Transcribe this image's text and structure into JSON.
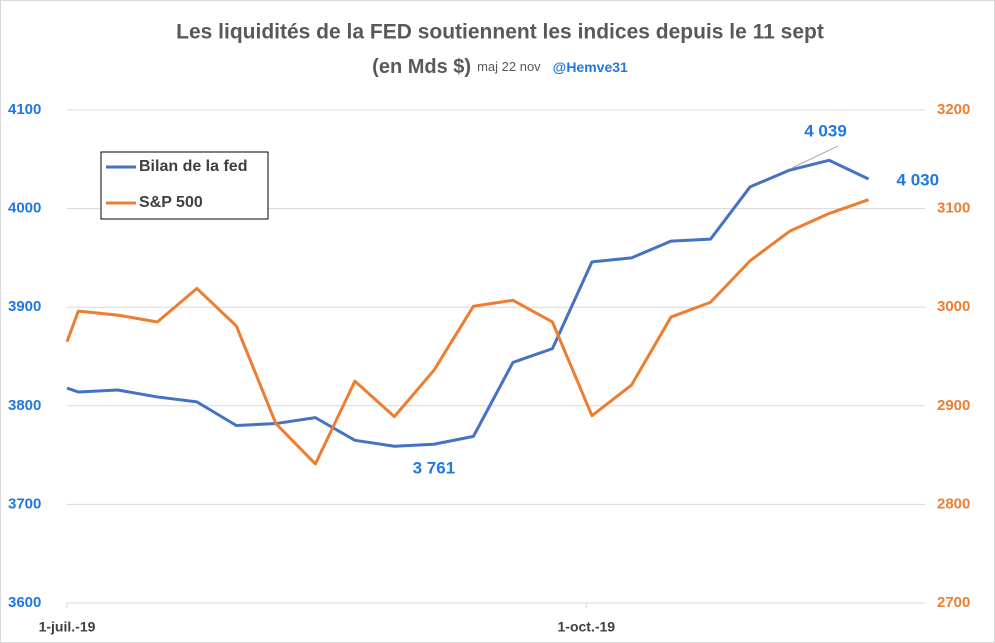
{
  "chart_data": {
    "type": "line",
    "title": "Les liquidités de la FED soutiennent les indices  depuis le 11 sept",
    "subtitle": "(en Mds $)",
    "update_note": "maj 22 nov",
    "author": "@Hemve31",
    "x": [
      "2019-07-01",
      "2019-07-03",
      "2019-07-10",
      "2019-07-17",
      "2019-07-24",
      "2019-07-31",
      "2019-08-07",
      "2019-08-14",
      "2019-08-21",
      "2019-08-28",
      "2019-09-04",
      "2019-09-11",
      "2019-09-18",
      "2019-09-25",
      "2019-10-02",
      "2019-10-09",
      "2019-10-16",
      "2019-10-23",
      "2019-10-30",
      "2019-11-06",
      "2019-11-13",
      "2019-11-20"
    ],
    "xlim": [
      "2019-07-01",
      "2019-11-30"
    ],
    "xticks": [
      {
        "value": "2019-07-01",
        "label": "1-juil.-19"
      },
      {
        "value": "2019-10-01",
        "label": "1-oct.-19"
      }
    ],
    "ylim": [
      3600,
      4100
    ],
    "yticks": [
      3600,
      3700,
      3800,
      3900,
      4000,
      4100
    ],
    "y2lim": [
      2700,
      3200
    ],
    "y2ticks": [
      2700,
      2800,
      2900,
      3000,
      3100,
      3200
    ],
    "grid": true,
    "legend": "upper left",
    "series": [
      {
        "name": "Bilan de la fed",
        "color": "#4472c4",
        "values": [
          3818,
          3814,
          3816,
          3809,
          3804,
          3780,
          3782,
          3788,
          3765,
          3759,
          3761,
          3769,
          3844,
          3858,
          3946,
          3950,
          3967,
          3969,
          4022,
          4039,
          4049,
          4030
        ],
        "value_labels": [
          null,
          null,
          null,
          null,
          null,
          null,
          null,
          null,
          null,
          null,
          "3 761",
          null,
          null,
          null,
          null,
          null,
          null,
          null,
          null,
          "4 039",
          null,
          "4 030"
        ]
      },
      {
        "name": "S&P 500",
        "color": "#ed7d31",
        "axis": "y2",
        "values": [
          2965,
          2996,
          2992,
          2985,
          3019,
          2981,
          2882,
          2841,
          2925,
          2889,
          2936,
          3001,
          3007,
          2985,
          2890,
          2921,
          2990,
          3005,
          3047,
          3077,
          3095,
          3109
        ]
      }
    ]
  }
}
